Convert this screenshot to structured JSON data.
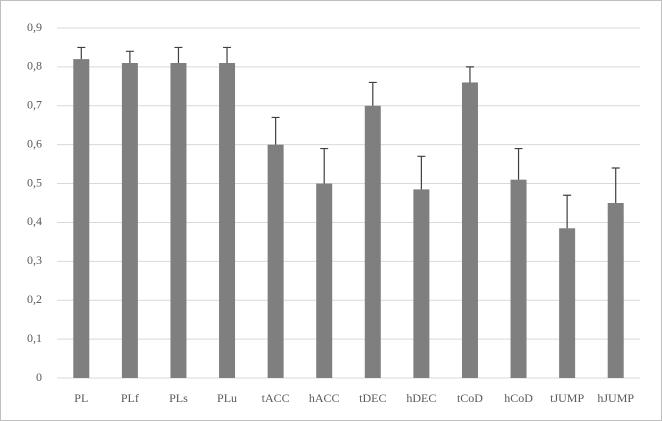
{
  "chart_data": {
    "type": "bar",
    "categories": [
      "PL",
      "PLf",
      "PLs",
      "PLu",
      "tACC",
      "hACC",
      "tDEC",
      "hDEC",
      "tCoD",
      "hCoD",
      "tJUMP",
      "hJUMP"
    ],
    "values": [
      0.82,
      0.81,
      0.81,
      0.81,
      0.6,
      0.5,
      0.7,
      0.485,
      0.76,
      0.51,
      0.385,
      0.45
    ],
    "errors": [
      0.03,
      0.03,
      0.04,
      0.04,
      0.07,
      0.09,
      0.06,
      0.085,
      0.04,
      0.08,
      0.085,
      0.09
    ],
    "color": "#7f7f7f",
    "ylim": [
      0,
      0.9
    ],
    "yticks": [
      0,
      {
        "value": 0.1,
        "label": "0,1"
      },
      {
        "value": 0.2,
        "label": "0,2"
      },
      {
        "value": 0.3,
        "label": "0,3"
      },
      {
        "value": 0.4,
        "label": "0,4"
      },
      {
        "value": 0.5,
        "label": "0,5"
      },
      {
        "value": 0.6,
        "label": "0,6"
      },
      {
        "value": 0.7,
        "label": "0,7"
      },
      {
        "value": 0.8,
        "label": "0,8"
      },
      {
        "value": 0.9,
        "label": "0,9"
      }
    ],
    "grid": true
  }
}
